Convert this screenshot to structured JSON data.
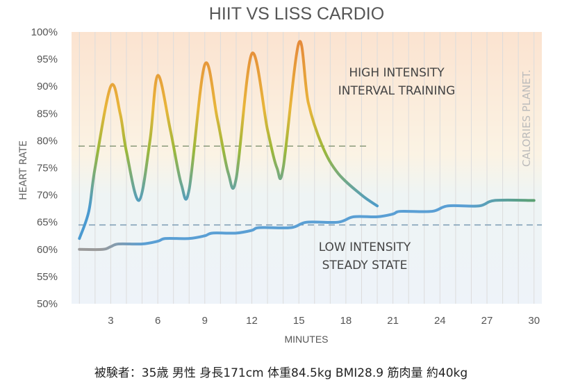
{
  "chart_data": {
    "type": "line",
    "title": "HIIT VS LISS CARDIO",
    "xlabel": "MINUTES",
    "ylabel": "HEART RATE",
    "xlim": [
      0.5,
      30.5
    ],
    "ylim": [
      50,
      100
    ],
    "x_ticks": [
      3,
      6,
      9,
      12,
      15,
      18,
      21,
      24,
      27,
      30
    ],
    "y_ticks": [
      "50%",
      "55%",
      "60%",
      "65%",
      "70%",
      "75%",
      "80%",
      "85%",
      "90%",
      "95%",
      "100%"
    ],
    "y_tick_values": [
      50,
      55,
      60,
      65,
      70,
      75,
      80,
      85,
      90,
      95,
      100
    ],
    "grid": "vertical lines every minute",
    "series": [
      {
        "key": "hiit",
        "x": [
          1,
          1.6,
          2,
          3,
          3.6,
          4,
          4.8,
          5.5,
          6,
          6.8,
          7.5,
          8,
          9,
          9.8,
          10.5,
          11,
          12,
          13,
          13.6,
          14,
          15,
          15.6,
          16.5,
          17.5,
          19,
          20
        ],
        "y": [
          62,
          67,
          75,
          90,
          85,
          78,
          69,
          80,
          92,
          82,
          72,
          71,
          94,
          84,
          74,
          73,
          96,
          82,
          75,
          75,
          98,
          87,
          79,
          74,
          70,
          68
        ],
        "colors": [
          "#e58a3a",
          "#e8b53a",
          "#9cb83a",
          "#4a9ad0"
        ]
      },
      {
        "key": "liss",
        "x": [
          1,
          2.5,
          3,
          3.5,
          5,
          6,
          6.5,
          8,
          9,
          9.5,
          11,
          12,
          12.5,
          14.5,
          15.5,
          17.5,
          18.5,
          20,
          21,
          21.5,
          23.5,
          24.5,
          26.5,
          27.5,
          30
        ],
        "y": [
          60,
          60,
          60.5,
          61,
          61,
          61.5,
          62,
          62,
          62.5,
          63,
          63,
          63.5,
          64,
          64,
          65,
          65,
          66,
          66,
          66.5,
          67,
          67,
          68,
          68,
          69,
          69
        ],
        "colors": [
          "#9a9a9a",
          "#5a9fd4",
          "#5a9fd4",
          "#5aa070"
        ]
      }
    ],
    "reference_lines": [
      {
        "y": 79,
        "x_end": 19.5,
        "color": "#8a9a7a"
      },
      {
        "y": 64.5,
        "x_end": 30.5,
        "color": "#7a9ab4"
      }
    ],
    "annotations": {
      "hiit_label": [
        "HIGH INTENSITY",
        "INTERVAL TRAINING"
      ],
      "liss_label": [
        "LOW INTENSITY",
        "STEADY STATE"
      ],
      "watermark": "CALORIES PLANET."
    }
  },
  "caption": "被験者：35歳 男性 身長171cm 体重84.5kg BMI28.9 筋肉量 約40kg"
}
